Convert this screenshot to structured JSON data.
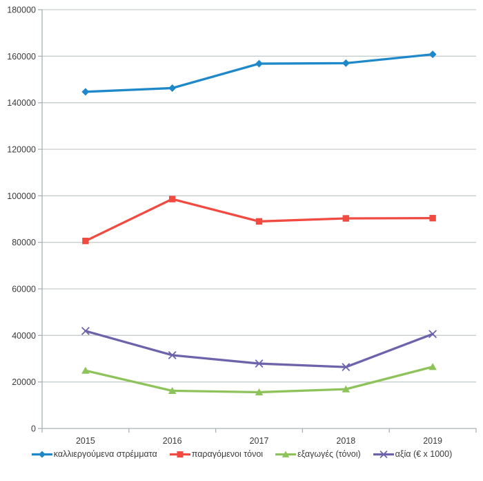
{
  "chart_data": {
    "type": "line",
    "title": "",
    "xlabel": "",
    "ylabel": "",
    "categories": [
      "2015",
      "2016",
      "2017",
      "2018",
      "2019"
    ],
    "series": [
      {
        "id": "cultivated-stremmata",
        "name": "καλλιεργούμενα στρέμματα",
        "marker": "diamond",
        "color": "#1F88C9",
        "values": [
          144700,
          146300,
          156800,
          157000,
          160800
        ]
      },
      {
        "id": "produced-tons",
        "name": "παραγόμενοι τόνοι",
        "marker": "square",
        "color": "#F04A41",
        "values": [
          80600,
          98600,
          89000,
          90300,
          90400
        ]
      },
      {
        "id": "exports-tons",
        "name": "εξαγωγές (τόνοι)",
        "marker": "triangle",
        "color": "#8EC25A",
        "values": [
          24900,
          16200,
          15600,
          16900,
          26500
        ]
      },
      {
        "id": "value-eur-x1000",
        "name": "αξία (€ x 1000)",
        "marker": "x",
        "color": "#6C63AB",
        "values": [
          41900,
          31500,
          27900,
          26400,
          40600
        ]
      }
    ],
    "ylim": [
      0,
      180000
    ],
    "ytick_step": 20000,
    "ytick_labels": [
      "0",
      "20000",
      "40000",
      "60000",
      "80000",
      "100000",
      "120000",
      "140000",
      "160000",
      "180000"
    ],
    "grid": true,
    "legend_position": "bottom"
  },
  "colors": {
    "background": "#FFFFFF",
    "gridline": "#C5CCCD",
    "axis": "#A8B2B5",
    "tick": "#A8B2B5",
    "text": "#3B3B3B"
  }
}
